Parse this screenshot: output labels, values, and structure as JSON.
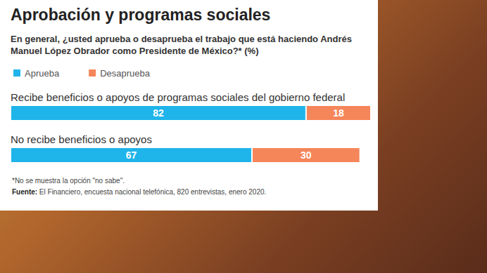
{
  "chart_data": {
    "type": "bar",
    "title": "Aprobación y programas sociales",
    "subtitle": "En general, ¿usted aprueba o desaprueba el trabajo que está haciendo Andrés Manuel López Obrador como Presidente de México?* (%)",
    "categories": [
      "Recibe beneficios o apoyos de programas sociales del gobierno federal",
      "No recibe beneficios o apoyos"
    ],
    "series": [
      {
        "name": "Aprueba",
        "color": "#1fb4ea",
        "values": [
          82,
          67
        ]
      },
      {
        "name": "Desaprueba",
        "color": "#f5865a",
        "values": [
          18,
          30
        ]
      }
    ],
    "xlim": [
      0,
      100
    ],
    "orientation": "horizontal",
    "stacked": true,
    "data_labels": true,
    "tick_labels": false,
    "grid": false,
    "legend": "top-left",
    "note": "*No se muestra la opción \"no sabe\".",
    "source": "Fuente: El Financiero, encuesta nacional telefónica, 820 entrevistas, enero 2020."
  }
}
